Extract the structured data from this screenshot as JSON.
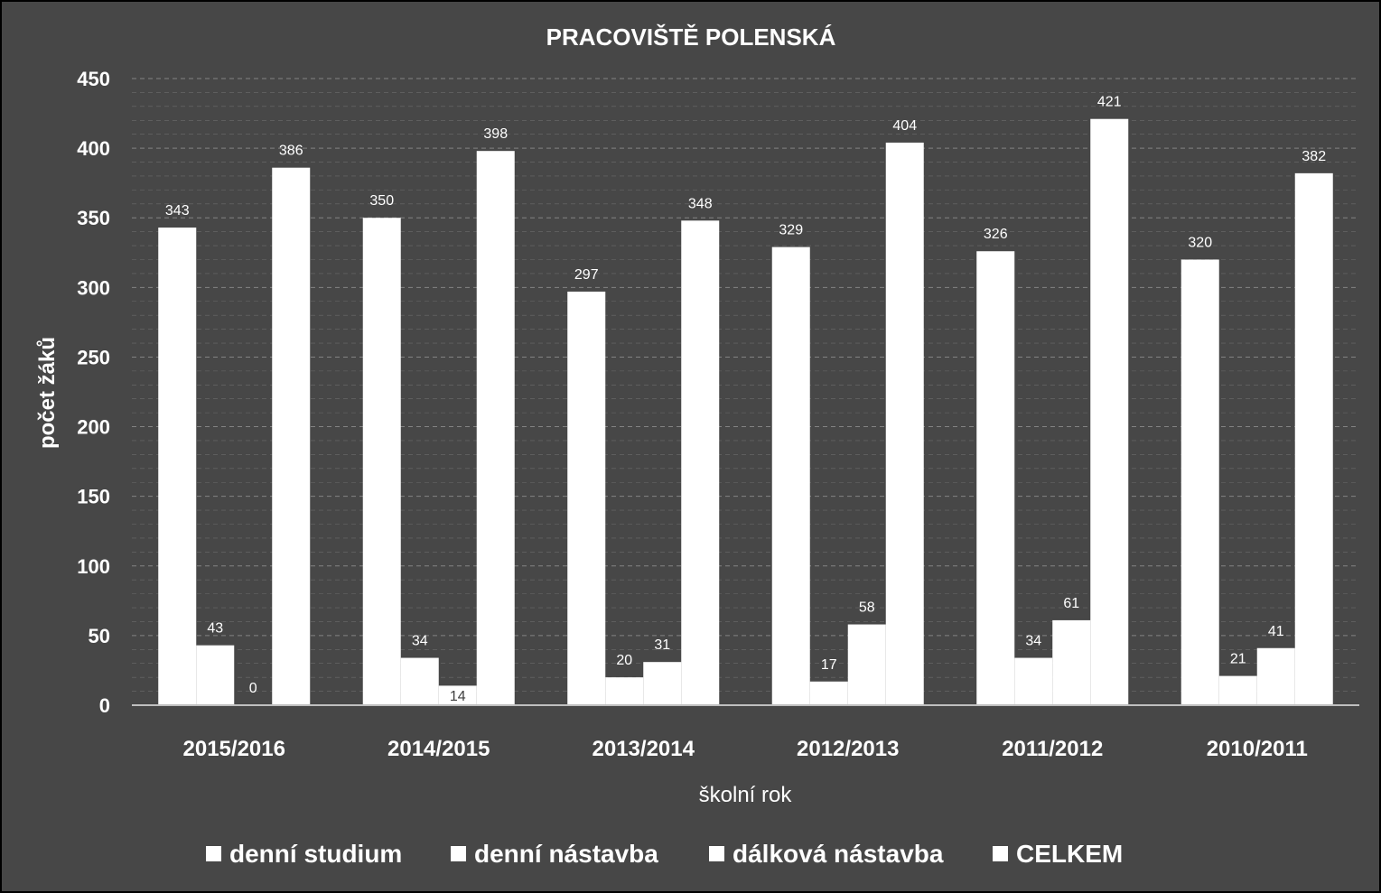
{
  "colors": {
    "background": "#474747",
    "bar": "#ffffff",
    "text": "#ffffff",
    "gridline": "#8a8a8a",
    "axis": "#bfbfbf",
    "border": "#000000"
  },
  "chart_data": {
    "type": "bar",
    "title": "PRACOVIŠTĚ POLENSKÁ",
    "xlabel": "školní rok",
    "ylabel": "počet žáků",
    "ylim": [
      0,
      450
    ],
    "yticks": [
      0,
      50,
      100,
      150,
      200,
      250,
      300,
      350,
      400,
      450
    ],
    "grid": true,
    "legend_position": "bottom",
    "categories": [
      "2015/2016",
      "2014/2015",
      "2013/2014",
      "2012/2013",
      "2011/2012",
      "2010/2011"
    ],
    "series": [
      {
        "name": "denní studium",
        "values": [
          343,
          350,
          297,
          329,
          326,
          320
        ]
      },
      {
        "name": "denní nástavba",
        "values": [
          43,
          34,
          20,
          17,
          34,
          21
        ]
      },
      {
        "name": "dálková nástavba",
        "values": [
          0,
          14,
          31,
          58,
          61,
          41
        ]
      },
      {
        "name": "CELKEM",
        "values": [
          386,
          398,
          348,
          404,
          421,
          382
        ]
      }
    ]
  }
}
